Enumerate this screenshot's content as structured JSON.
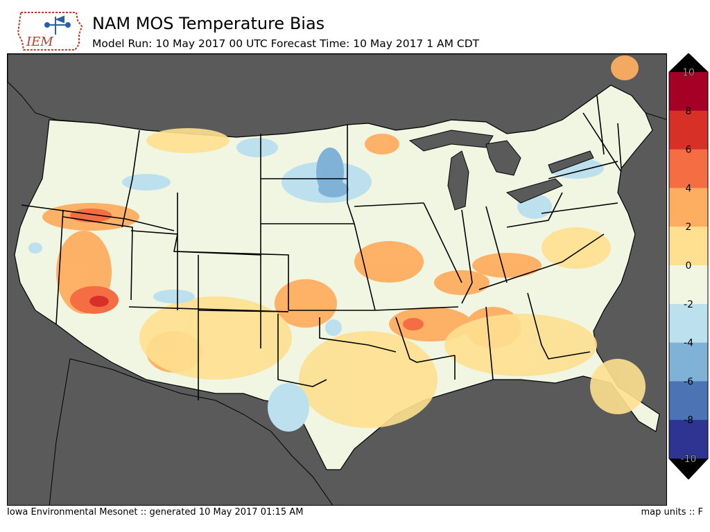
{
  "header": {
    "title": "NAM MOS Temperature Bias",
    "subtitle": "Model Run: 10 May 2017 00 UTC Forecast Time: 10 May 2017 1 AM CDT",
    "logo_text": "IEM"
  },
  "footer": {
    "left": "Iowa Environmental Mesonet :: generated 10 May 2017 01:15 AM",
    "right": "map units :: F"
  },
  "colorbar": {
    "ticks": [
      "10",
      "8",
      "6",
      "4",
      "2",
      "0",
      "-2",
      "-4",
      "-6",
      "-8",
      "-10"
    ],
    "colors": [
      "#a50026",
      "#d73027",
      "#f46d43",
      "#fdae61",
      "#fee090",
      "#f0f6e2",
      "#bde0ee",
      "#7fb2d6",
      "#4a74b4",
      "#2d3492"
    ],
    "extend_max_color": "#000000",
    "extend_min_color": "#000000"
  },
  "map": {
    "ocean_color": "#5a5a5a",
    "land_base_color": "#f0f6e2",
    "region": "Continental United States"
  }
}
